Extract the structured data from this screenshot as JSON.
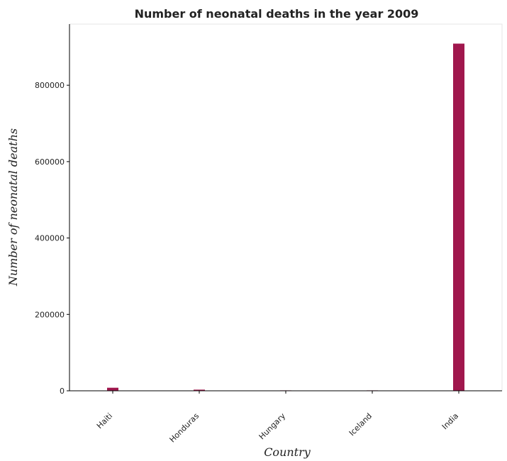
{
  "chart_data": {
    "type": "bar",
    "title": "Number of neonatal deaths in the year 2009",
    "xlabel": "Country",
    "ylabel": "Number of neonatal deaths",
    "categories": [
      "Haiti",
      "Honduras",
      "Hungary",
      "Iceland",
      "India"
    ],
    "values": [
      8000,
      3000,
      500,
      10,
      909000
    ],
    "ylim": [
      0,
      960000
    ],
    "yticks": [
      0,
      200000,
      400000,
      600000,
      800000
    ],
    "ytick_labels": [
      "0",
      "200000",
      "400000",
      "600000",
      "800000"
    ],
    "grid": false,
    "legend": "none",
    "bar_color": "#a0174d"
  }
}
